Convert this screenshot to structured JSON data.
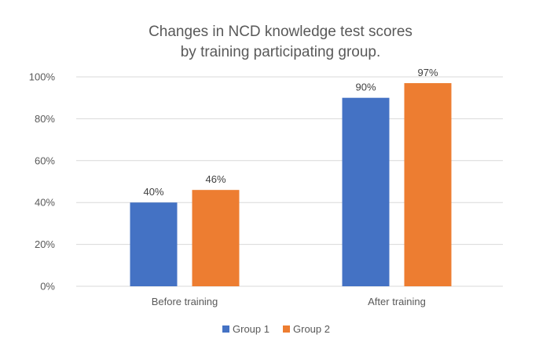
{
  "chart_data": {
    "type": "bar",
    "title_lines": [
      "Changes in NCD knowledge test scores",
      "by training participating group."
    ],
    "categories": [
      "Before training",
      "After training"
    ],
    "series": [
      {
        "name": "Group 1",
        "values": [
          40,
          90
        ],
        "labels": [
          "40%",
          "90%"
        ],
        "color": "#4472c4"
      },
      {
        "name": "Group 2",
        "values": [
          46,
          97
        ],
        "labels": [
          "46%",
          "97%"
        ],
        "color": "#ed7d31"
      }
    ],
    "y_ticks": [
      "0%",
      "20%",
      "40%",
      "60%",
      "80%",
      "100%"
    ],
    "ylim": [
      0,
      100
    ],
    "y_unit": "%",
    "grid": true,
    "legend_position": "bottom"
  }
}
